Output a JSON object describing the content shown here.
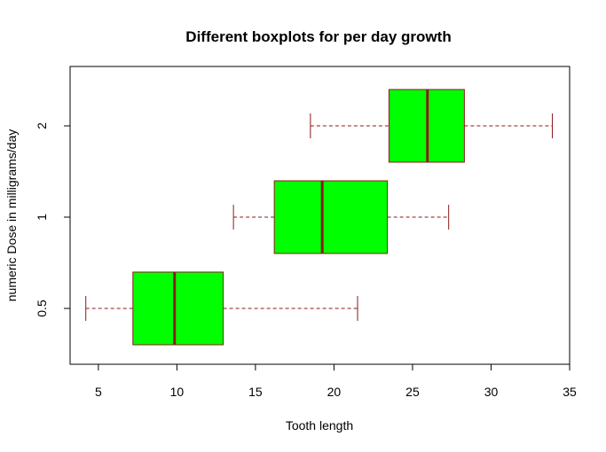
{
  "chart_data": {
    "type": "boxplot",
    "orientation": "horizontal",
    "title": "Different boxplots for per day growth",
    "xlabel": "Tooth length",
    "ylabel": "numeric Dose in milligrams/day",
    "xlim": [
      3.2,
      35
    ],
    "x_ticks": [
      5,
      10,
      15,
      20,
      25,
      30,
      35
    ],
    "categories": [
      "0.5",
      "1",
      "2"
    ],
    "boxes": [
      {
        "category": "0.5",
        "min": 4.2,
        "q1": 7.2,
        "median": 9.85,
        "q3": 12.95,
        "max": 21.5
      },
      {
        "category": "1",
        "min": 13.6,
        "q1": 16.2,
        "median": 19.25,
        "q3": 23.4,
        "max": 27.3
      },
      {
        "category": "2",
        "min": 18.5,
        "q1": 23.5,
        "median": 25.95,
        "q3": 28.3,
        "max": 33.9
      }
    ],
    "colors": {
      "box_fill": "#00ff00",
      "box_border": "#8b1a1a",
      "median": "#8b1a1a",
      "whisker": "#8b1a1a"
    },
    "grid": false,
    "legend": "none"
  }
}
